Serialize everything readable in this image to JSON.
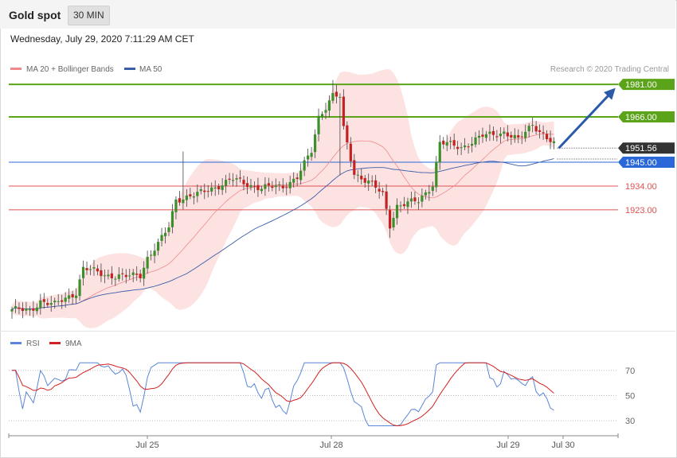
{
  "header": {
    "title": "Gold spot",
    "interval": "30 MIN",
    "timestamp": "Wednesday, July 29, 2020 7:11:29 AM CET"
  },
  "legend": {
    "ma20_bb": "MA 20 + Bollinger Bands",
    "ma50": "MA 50",
    "rsi": "RSI",
    "rsi_ma": "9MA"
  },
  "credit": "Research © 2020 Trading Central",
  "colors": {
    "up": "#3c8f2a",
    "down": "#c42222",
    "bollinger_fill": "#fde0e0",
    "ma20": "#f08a8a",
    "ma50": "#3a5da8",
    "resistance": "#5ba41a",
    "support_blue": "#2a67d8",
    "support_red": "#e05050",
    "current": "#333333",
    "arrow": "#2a5aa8",
    "rsi": "#5a85d8",
    "rsi_ma": "#d42020"
  },
  "chart_data": [
    {
      "type": "candlestick",
      "title": "Gold spot",
      "x_ticks": [
        "Jul 25",
        "Jul 28",
        "Jul 29",
        "Jul 30"
      ],
      "price_range": [
        1870,
        1984
      ],
      "levels": [
        {
          "value": 1981.0,
          "label": "1981.00",
          "kind": "resistance"
        },
        {
          "value": 1966.0,
          "label": "1966.00",
          "kind": "resistance"
        },
        {
          "value": 1951.56,
          "label": "1951.56",
          "kind": "current"
        },
        {
          "value": 1945.0,
          "label": "1945.00",
          "kind": "pivot"
        },
        {
          "value": 1934.0,
          "label": "1934.00",
          "kind": "support"
        },
        {
          "value": 1923.0,
          "label": "1923.00",
          "kind": "support"
        }
      ],
      "forecast_arrow": {
        "from": 1951.5,
        "to": 1980.5
      }
    },
    {
      "type": "line",
      "title": "RSI",
      "y_ticks": [
        70,
        50,
        30
      ],
      "ylim": [
        20,
        80
      ]
    }
  ]
}
